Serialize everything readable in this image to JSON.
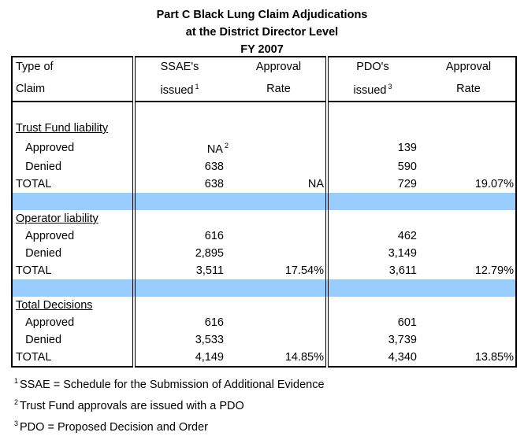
{
  "title": [
    "Part C Black Lung Claim Adjudications",
    "at the District Director Level",
    "FY 2007"
  ],
  "header": {
    "col1": [
      "Type of",
      "Claim"
    ],
    "col2": [
      "SSAE's",
      "issued"
    ],
    "col2_note": "1",
    "col3": [
      "Approval",
      "Rate"
    ],
    "col4": [
      "PDO's",
      "issued"
    ],
    "col4_note": "3",
    "col5": [
      "Approval",
      "Rate"
    ]
  },
  "sections": [
    {
      "name": "Trust Fund liability",
      "rows": [
        {
          "label": "Approved",
          "ssae": "NA",
          "ssae_note": "2",
          "ssae_rate": "",
          "pdo": "139",
          "pdo_rate": ""
        },
        {
          "label": "Denied",
          "ssae": "638",
          "ssae_rate": "",
          "pdo": "590",
          "pdo_rate": ""
        },
        {
          "label": "TOTAL",
          "ssae": "638",
          "ssae_rate": "NA",
          "pdo": "729",
          "pdo_rate": "19.07%"
        }
      ]
    },
    {
      "name": "Operator liability",
      "rows": [
        {
          "label": "Approved",
          "ssae": "616",
          "ssae_rate": "",
          "pdo": "462",
          "pdo_rate": ""
        },
        {
          "label": "Denied",
          "ssae": "2,895",
          "ssae_rate": "",
          "pdo": "3,149",
          "pdo_rate": ""
        },
        {
          "label": "TOTAL",
          "ssae": "3,511",
          "ssae_rate": "17.54%",
          "pdo": "3,611",
          "pdo_rate": "12.79%"
        }
      ]
    },
    {
      "name": "Total Decisions",
      "rows": [
        {
          "label": "Approved",
          "ssae": "616",
          "ssae_rate": "",
          "pdo": "601",
          "pdo_rate": ""
        },
        {
          "label": "Denied",
          "ssae": "3,533",
          "ssae_rate": "",
          "pdo": "3,739",
          "pdo_rate": ""
        },
        {
          "label": "TOTAL",
          "ssae": "4,149",
          "ssae_rate": "14.85%",
          "pdo": "4,340",
          "pdo_rate": "13.85%"
        }
      ]
    }
  ],
  "footnotes": [
    {
      "num": "1",
      "text": "SSAE = Schedule for the Submission of Additional Evidence"
    },
    {
      "num": "2",
      "text": "Trust Fund approvals are issued with a PDO"
    },
    {
      "num": "3",
      "text": "PDO = Proposed Decision and Order"
    }
  ],
  "colors": {
    "separator": "#99ccff"
  }
}
